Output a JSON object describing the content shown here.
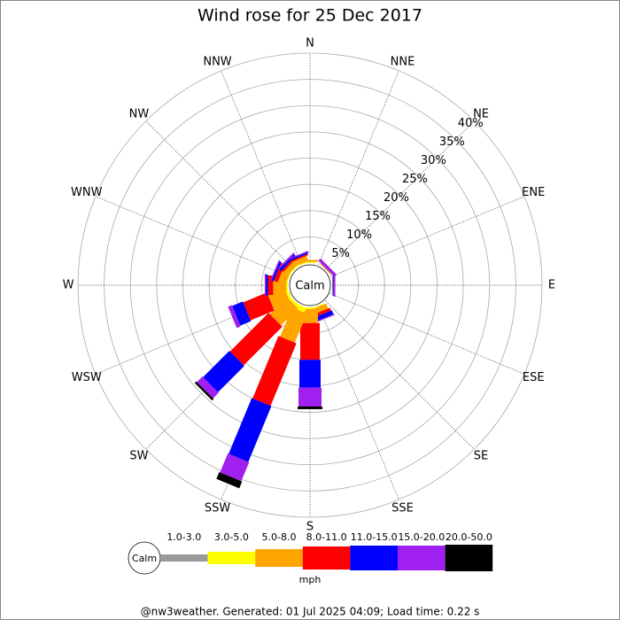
{
  "chart_data": {
    "type": "wind-rose",
    "title": "Wind rose for 25 Dec 2017",
    "calm_label": "Calm",
    "directions": [
      "N",
      "NNE",
      "NE",
      "ENE",
      "E",
      "ESE",
      "SE",
      "SSE",
      "S",
      "SSW",
      "SW",
      "WSW",
      "W",
      "WNW",
      "NW",
      "NNW"
    ],
    "series": [
      {
        "name": "1.0-3.0",
        "color": "#999999",
        "values": [
          0,
          0,
          0,
          0,
          0,
          0,
          0,
          0,
          0,
          0,
          0,
          0,
          0,
          0,
          0,
          0
        ]
      },
      {
        "name": "3.0-5.0",
        "color": "#ffff00",
        "values": [
          0.2,
          0,
          0,
          0,
          0,
          0,
          0,
          0.2,
          0.3,
          1,
          0.5,
          0.5,
          0.3,
          0.2,
          0.2,
          0.2
        ]
      },
      {
        "name": "5.0-8.0",
        "color": "#ffa500",
        "values": [
          0.4,
          0,
          0.2,
          0,
          0.1,
          0,
          0,
          1,
          2.7,
          6,
          4.6,
          3.4,
          2.5,
          1.5,
          1,
          1
        ]
      },
      {
        "name": "8.0-11.0",
        "color": "#ff0000",
        "values": [
          0,
          0,
          0,
          0,
          0,
          0,
          0,
          0.6,
          7,
          12.9,
          10.4,
          4.9,
          1,
          0.8,
          0.4,
          0.3
        ]
      },
      {
        "name": "11.0-15.0",
        "color": "#0000ff",
        "values": [
          0,
          0,
          0,
          0,
          0.2,
          0,
          0,
          0.8,
          5.3,
          11.5,
          7.1,
          2.2,
          0.4,
          0.4,
          0.5,
          0.3
        ]
      },
      {
        "name": "15.0-20.0",
        "color": "#a020f0",
        "values": [
          0,
          0,
          0.6,
          0,
          0.3,
          0,
          0,
          0.2,
          3.6,
          3.9,
          1.5,
          0.8,
          0.2,
          0.2,
          0.3,
          0.2
        ]
      },
      {
        "name": "20.0-50.0",
        "color": "#000000",
        "values": [
          0,
          0,
          0,
          0,
          0,
          0,
          0,
          0,
          0.5,
          1.4,
          0.4,
          0,
          0,
          0,
          0,
          0
        ]
      }
    ],
    "rlim": [
      0,
      40
    ],
    "rticks": [
      {
        "value": 5,
        "label": "5%"
      },
      {
        "value": 10,
        "label": "10%"
      },
      {
        "value": 15,
        "label": "15%"
      },
      {
        "value": 20,
        "label": "20%"
      },
      {
        "value": 25,
        "label": "25%"
      },
      {
        "value": 30,
        "label": "30%"
      },
      {
        "value": 35,
        "label": "35%"
      },
      {
        "value": 40,
        "label": "40%"
      }
    ],
    "unit": "mph",
    "footer": "@nw3weather. Generated: 01 Jul 2025 04:09; Load time: 0.22 s"
  }
}
